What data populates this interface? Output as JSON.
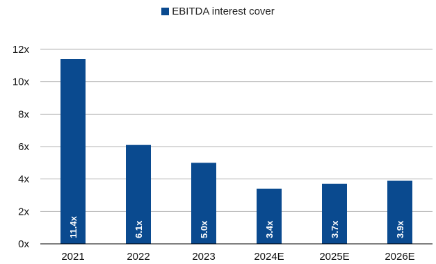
{
  "chart_data": {
    "type": "bar",
    "categories": [
      "2021",
      "2022",
      "2023",
      "2024E",
      "2025E",
      "2026E"
    ],
    "series": [
      {
        "name": "EBITDA interest cover",
        "values": [
          11.4,
          6.1,
          5.0,
          3.4,
          3.7,
          3.9
        ]
      }
    ],
    "data_labels": [
      "11.4x",
      "6.1x",
      "5.0x",
      "3.4x",
      "3.7x",
      "3.9x"
    ],
    "y_ticks": [
      "0x",
      "2x",
      "4x",
      "6x",
      "8x",
      "10x",
      "12x"
    ],
    "ylim": [
      0,
      12
    ],
    "grid": true,
    "legend_position": "top",
    "colors": {
      "bar": "#0a4a8f",
      "grid": "#b3b3b3",
      "axis": "#000000",
      "label": "#ffffff"
    }
  }
}
